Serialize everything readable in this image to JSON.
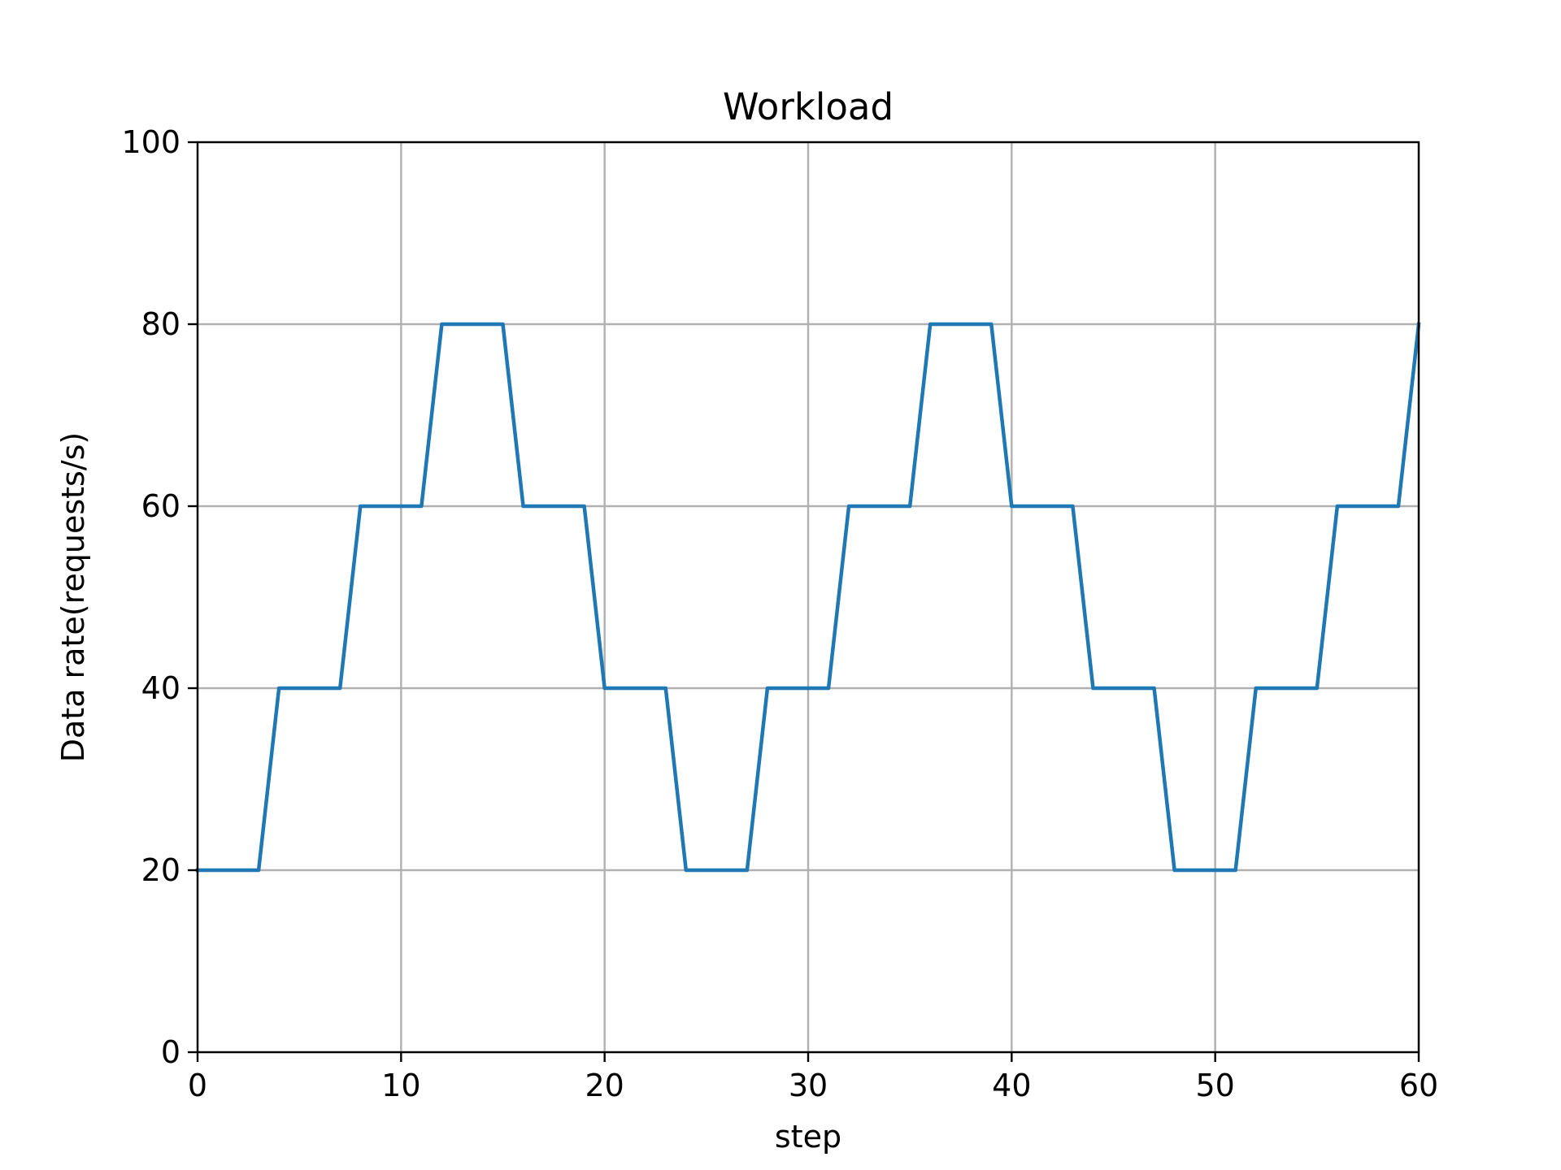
{
  "chart_data": {
    "type": "line",
    "title": "Workload",
    "xlabel": "step",
    "ylabel": "Data rate(requests/s)",
    "xlim": [
      0,
      60
    ],
    "ylim": [
      0,
      100
    ],
    "xticks": [
      0,
      10,
      20,
      30,
      40,
      50,
      60
    ],
    "yticks": [
      0,
      20,
      40,
      60,
      80,
      100
    ],
    "grid": true,
    "series": [
      {
        "color": "#1f77b4",
        "x": [
          0,
          1,
          2,
          3,
          4,
          5,
          6,
          7,
          8,
          9,
          10,
          11,
          12,
          13,
          14,
          15,
          16,
          17,
          18,
          19,
          20,
          21,
          22,
          23,
          24,
          25,
          26,
          27,
          28,
          29,
          30,
          31,
          32,
          33,
          34,
          35,
          36,
          37,
          38,
          39,
          40,
          41,
          42,
          43,
          44,
          45,
          46,
          47,
          48,
          49,
          50,
          51,
          52,
          53,
          54,
          55,
          56,
          57,
          58,
          59,
          60
        ],
        "y": [
          20,
          20,
          20,
          20,
          40,
          40,
          40,
          40,
          60,
          60,
          60,
          60,
          80,
          80,
          80,
          80,
          60,
          60,
          60,
          60,
          40,
          40,
          40,
          40,
          20,
          20,
          20,
          20,
          40,
          40,
          40,
          40,
          60,
          60,
          60,
          60,
          80,
          80,
          80,
          80,
          60,
          60,
          60,
          60,
          40,
          40,
          40,
          40,
          20,
          20,
          20,
          20,
          40,
          40,
          40,
          40,
          60,
          60,
          60,
          60,
          80
        ]
      }
    ]
  }
}
